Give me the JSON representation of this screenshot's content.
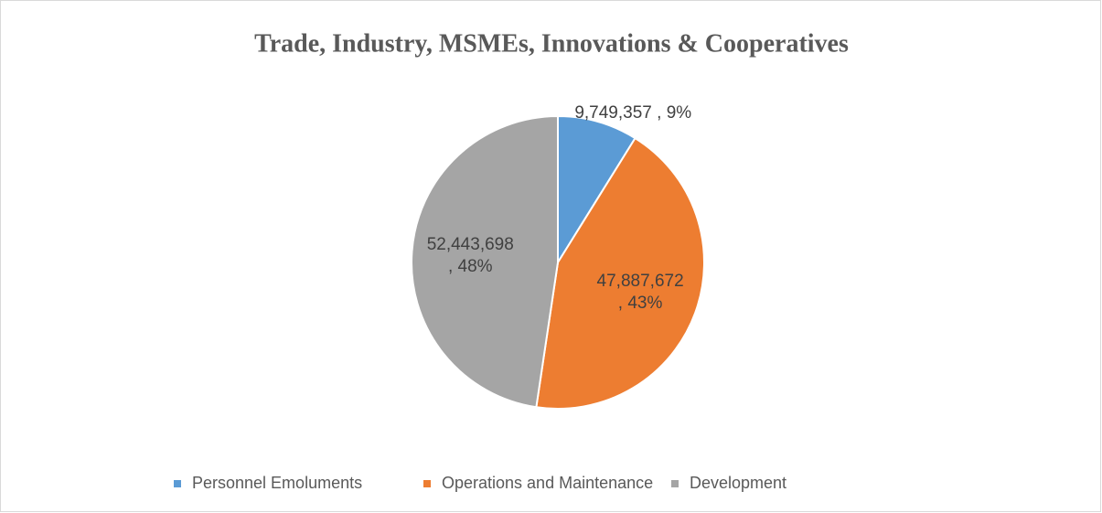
{
  "chart_data": {
    "type": "pie",
    "title": "Trade, Industry, MSMEs, Innovations & Cooperatives",
    "categories": [
      "Personnel Emoluments",
      "Operations and Maintenance",
      "Development"
    ],
    "values": [
      9749357,
      47887672,
      52443698
    ],
    "value_labels": [
      [
        "9,749,357 , 9%"
      ],
      [
        "47,887,672",
        ", 43%"
      ],
      [
        "52,443,698",
        ", 48%"
      ]
    ],
    "colors": [
      "#5b9bd5",
      "#ed7d31",
      "#a5a5a5"
    ],
    "legend": "bottom"
  }
}
